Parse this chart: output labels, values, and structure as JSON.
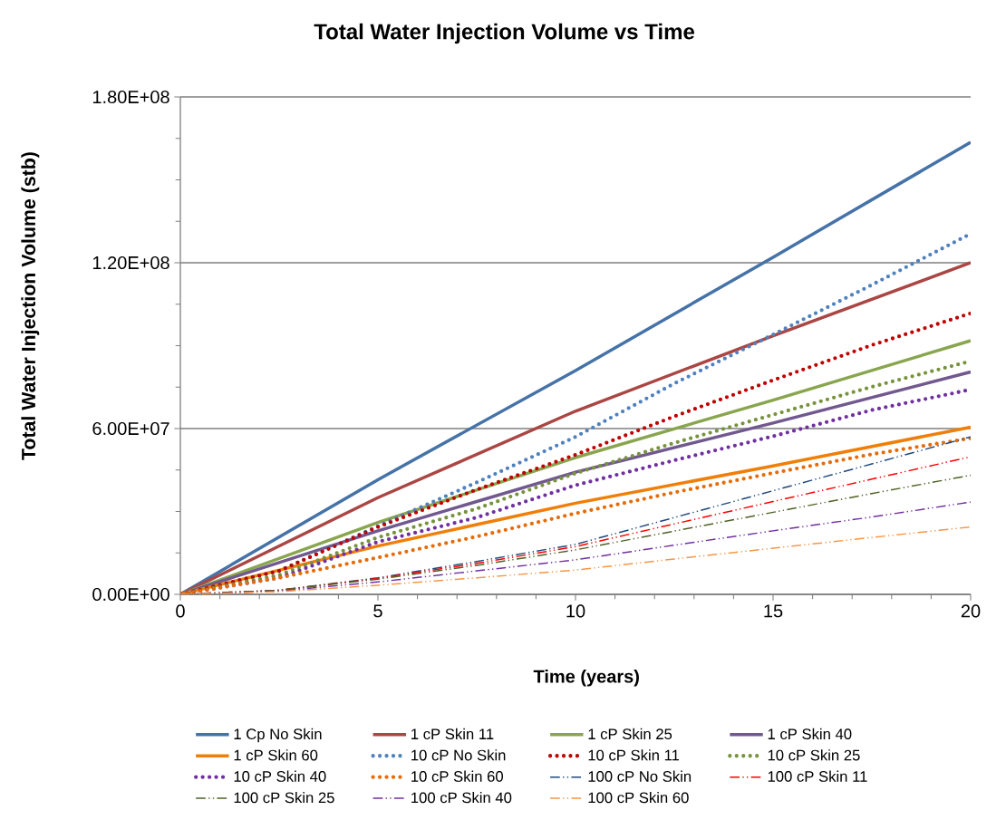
{
  "chart_data": {
    "type": "line",
    "title": "Total Water Injection Volume vs Time",
    "xlabel": "Time (years)",
    "ylabel": "Total Water Injection Volume (stb)",
    "xlim": [
      0,
      20
    ],
    "ylim": [
      0,
      180000000
    ],
    "xticks": [
      0,
      {
        "value": 1,
        "label": null
      },
      {
        "value": 2,
        "label": null
      },
      {
        "value": 3,
        "label": null
      },
      {
        "value": 4,
        "label": null
      },
      5,
      {
        "value": 6,
        "label": null
      },
      {
        "value": 7,
        "label": null
      },
      {
        "value": 8,
        "label": null
      },
      {
        "value": 9,
        "label": null
      },
      10,
      {
        "value": 11,
        "label": null
      },
      {
        "value": 12,
        "label": null
      },
      {
        "value": 13,
        "label": null
      },
      {
        "value": 14,
        "label": null
      },
      15,
      {
        "value": 16,
        "label": null
      },
      {
        "value": 17,
        "label": null
      },
      {
        "value": 18,
        "label": null
      },
      {
        "value": 19,
        "label": null
      },
      20
    ],
    "yticks": [
      {
        "value": 0,
        "label": "0.00E+00"
      },
      {
        "value": 15000000,
        "label": null
      },
      {
        "value": 30000000,
        "label": null
      },
      {
        "value": 45000000,
        "label": null
      },
      {
        "value": 60000000,
        "label": "6.00E+07"
      },
      {
        "value": 75000000,
        "label": null
      },
      {
        "value": 90000000,
        "label": null
      },
      {
        "value": 105000000,
        "label": null
      },
      {
        "value": 120000000,
        "label": "1.20E+08"
      },
      {
        "value": 135000000,
        "label": null
      },
      {
        "value": 150000000,
        "label": null
      },
      {
        "value": 165000000,
        "label": null
      },
      {
        "value": 180000000,
        "label": "1.80E+08"
      }
    ],
    "grid": "y",
    "legend": "bottom",
    "marker": "none",
    "series": [
      {
        "name": "1 Cp No Skin",
        "color": "#4572a7",
        "line_style": "solid",
        "x": [
          0,
          5,
          10,
          15,
          20
        ],
        "values": [
          0,
          41500000,
          81000000,
          122000000,
          163600000
        ]
      },
      {
        "name": "1 cP Skin 11",
        "color": "#aa4643",
        "line_style": "solid",
        "x": [
          0,
          5,
          10,
          15,
          20
        ],
        "values": [
          0,
          35000000,
          66300000,
          93600000,
          120000000
        ]
      },
      {
        "name": "1 cP Skin 25",
        "color": "#89a54e",
        "line_style": "solid",
        "x": [
          0,
          5,
          10,
          15,
          20
        ],
        "values": [
          0,
          26000000,
          49500000,
          70300000,
          91800000
        ]
      },
      {
        "name": "1 cP Skin 40",
        "color": "#71588f",
        "line_style": "solid",
        "x": [
          0,
          5,
          10,
          15,
          20
        ],
        "values": [
          0,
          23000000,
          44200000,
          62000000,
          80500000
        ]
      },
      {
        "name": "1 cP Skin 60",
        "color": "#f07f09",
        "line_style": "solid",
        "x": [
          0,
          5,
          10,
          15,
          20
        ],
        "values": [
          0,
          17500000,
          33000000,
          46500000,
          60500000
        ]
      },
      {
        "name": "10 cP No Skin",
        "color": "#4f81bd",
        "line_style": "dotted",
        "x": [
          0,
          2.5,
          5,
          7.5,
          10,
          12.5,
          15,
          17.5,
          20
        ],
        "values": [
          0,
          8500000,
          24700000,
          40500000,
          57000000,
          76300000,
          94000000,
          112000000,
          130500000
        ]
      },
      {
        "name": "10 cP Skin 11",
        "color": "#c00000",
        "line_style": "dotted",
        "x": [
          0,
          2.5,
          5,
          7.5,
          10,
          12.5,
          15,
          17.5,
          20
        ],
        "values": [
          0,
          8500000,
          24400000,
          37900000,
          50500000,
          64400000,
          77500000,
          90200000,
          101700000
        ]
      },
      {
        "name": "10 cP Skin 25",
        "color": "#77933c",
        "line_style": "dotted",
        "x": [
          0,
          2.5,
          5,
          7.5,
          10,
          12.5,
          15,
          17.5,
          20
        ],
        "values": [
          0,
          7000000,
          20600000,
          31000000,
          43800000,
          54800000,
          65000000,
          75100000,
          84400000
        ]
      },
      {
        "name": "10 cP Skin 40",
        "color": "#7030a0",
        "line_style": "dotted",
        "x": [
          0,
          2.5,
          5,
          7.5,
          10,
          12.5,
          15,
          17.5,
          20
        ],
        "values": [
          0,
          6000000,
          19000000,
          27800000,
          39500000,
          48500000,
          57200000,
          66700000,
          74100000
        ]
      },
      {
        "name": "10 cP Skin 60",
        "color": "#e46c0a",
        "line_style": "dotted",
        "x": [
          0,
          2.5,
          5,
          7.5,
          10,
          12.5,
          15,
          17.5,
          20
        ],
        "values": [
          0,
          6000000,
          13300000,
          20900000,
          29300000,
          36900000,
          43900000,
          50700000,
          56500000
        ]
      },
      {
        "name": "100 cP No Skin",
        "color": "#1f497d",
        "line_style": "dashed",
        "x": [
          0,
          2.5,
          5,
          7.5,
          10,
          12.5,
          15,
          17.5,
          20
        ],
        "values": [
          0,
          1500000,
          6000000,
          11900000,
          18100000,
          27800000,
          37500000,
          47200000,
          57000000
        ]
      },
      {
        "name": "100 cP Skin 11",
        "color": "#ff0000",
        "line_style": "dashed",
        "x": [
          0,
          2.5,
          5,
          7.5,
          10,
          12.5,
          15,
          17.5,
          20
        ],
        "values": [
          0,
          1500000,
          5800000,
          11200000,
          17300000,
          25500000,
          33600000,
          41700000,
          49800000
        ]
      },
      {
        "name": "100 cP Skin 25",
        "color": "#4f6228",
        "line_style": "dashed",
        "x": [
          0,
          2.5,
          5,
          7.5,
          10,
          12.5,
          15,
          17.5,
          20
        ],
        "values": [
          0,
          1500000,
          5500000,
          10500000,
          16100000,
          22900000,
          29700000,
          36500000,
          43100000
        ]
      },
      {
        "name": "100 cP Skin 40",
        "color": "#7030a0",
        "line_style": "dashed",
        "x": [
          0,
          2.5,
          5,
          7.5,
          10,
          12.5,
          15,
          17.5,
          20
        ],
        "values": [
          0,
          1200000,
          4500000,
          8500000,
          12500000,
          17800000,
          23000000,
          28000000,
          33400000
        ]
      },
      {
        "name": "100 cP Skin 60",
        "color": "#f79646",
        "line_style": "dashed",
        "x": [
          0,
          2.5,
          5,
          7.5,
          10,
          12.5,
          15,
          17.5,
          20
        ],
        "values": [
          0,
          1000000,
          3300000,
          6000000,
          8800000,
          12800000,
          16700000,
          20600000,
          24400000
        ]
      }
    ]
  }
}
